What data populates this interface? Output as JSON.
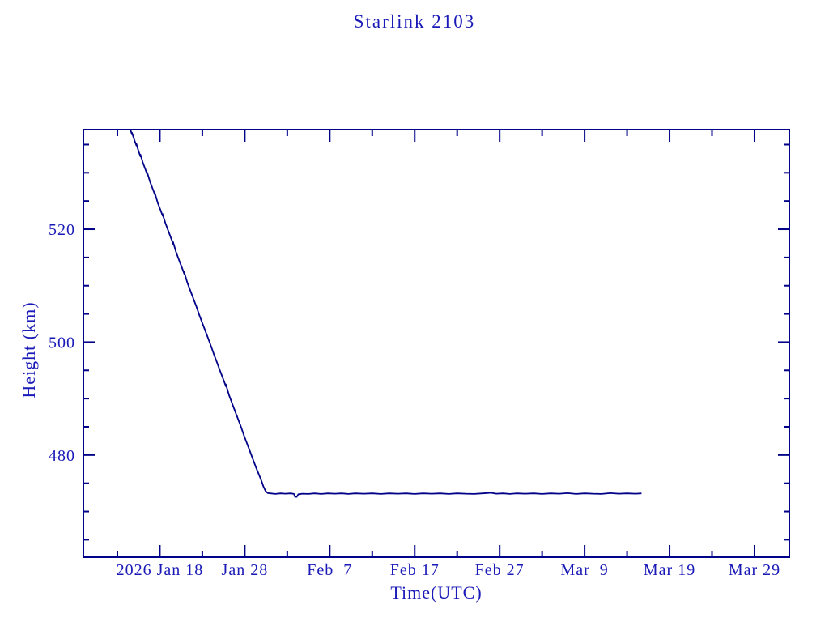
{
  "colors": {
    "background": "#ffffff",
    "line": "#000088",
    "frame": "#000088",
    "text": "#1a1ab8"
  },
  "chart_data": {
    "type": "line",
    "title": "Starlink 2103",
    "xlabel": "Time(UTC)",
    "ylabel": "Height (km)",
    "x_unit": "day_of_year_2026",
    "x_range": [
      9.0,
      92.1
    ],
    "y_range": [
      461.9,
      537.65
    ],
    "grid": "off",
    "legend": "none",
    "x_major_ticks": [
      {
        "day": 18,
        "label": "2026 Jan 18"
      },
      {
        "day": 28,
        "label": "Jan 28"
      },
      {
        "day": 38,
        "label": "Feb  7"
      },
      {
        "day": 48,
        "label": "Feb 17"
      },
      {
        "day": 58,
        "label": "Feb 27"
      },
      {
        "day": 68,
        "label": "Mar  9"
      },
      {
        "day": 78,
        "label": "Mar 19"
      },
      {
        "day": 88,
        "label": "Mar 29"
      }
    ],
    "x_minor_ticks": [
      13,
      23,
      33,
      43,
      53,
      63,
      73,
      83
    ],
    "y_major_ticks": [
      {
        "value": 480,
        "label": "480"
      },
      {
        "value": 500,
        "label": "500"
      },
      {
        "value": 520,
        "label": "520"
      }
    ],
    "y_minor_ticks": [
      465,
      470,
      475,
      485,
      490,
      495,
      505,
      510,
      515,
      525,
      530,
      535
    ],
    "series": [
      {
        "name": "height-km",
        "points": [
          [
            14.55,
            537.65
          ],
          [
            14.75,
            536.7
          ],
          [
            14.7,
            537.2
          ],
          [
            15.0,
            535.8
          ],
          [
            15.25,
            534.8
          ],
          [
            15.2,
            535.3
          ],
          [
            15.5,
            533.8
          ],
          [
            15.75,
            532.8
          ],
          [
            15.7,
            533.3
          ],
          [
            16.0,
            531.8
          ],
          [
            16.3,
            530.6
          ],
          [
            16.55,
            529.6
          ],
          [
            16.5,
            530.1
          ],
          [
            16.85,
            528.4
          ],
          [
            17.15,
            527.2
          ],
          [
            17.45,
            526.0
          ],
          [
            17.4,
            526.5
          ],
          [
            17.75,
            524.7
          ],
          [
            18.05,
            523.5
          ],
          [
            18.35,
            522.3
          ],
          [
            18.3,
            522.8
          ],
          [
            18.65,
            521.1
          ],
          [
            18.95,
            519.9
          ],
          [
            19.3,
            518.5
          ],
          [
            19.6,
            517.3
          ],
          [
            19.55,
            517.8
          ],
          [
            19.9,
            516.0
          ],
          [
            20.2,
            514.8
          ],
          [
            20.55,
            513.4
          ],
          [
            20.9,
            512.0
          ],
          [
            20.85,
            512.5
          ],
          [
            21.25,
            510.5
          ],
          [
            21.6,
            509.1
          ],
          [
            21.95,
            507.7
          ],
          [
            22.3,
            506.3
          ],
          [
            22.65,
            504.8
          ],
          [
            23.0,
            503.4
          ],
          [
            23.35,
            502.0
          ],
          [
            23.7,
            500.6
          ],
          [
            24.05,
            499.2
          ],
          [
            24.4,
            497.7
          ],
          [
            24.75,
            496.3
          ],
          [
            25.1,
            494.9
          ],
          [
            25.45,
            493.5
          ],
          [
            25.8,
            492.1
          ],
          [
            25.75,
            492.6
          ],
          [
            26.15,
            490.6
          ],
          [
            26.5,
            489.2
          ],
          [
            26.85,
            487.8
          ],
          [
            27.2,
            486.4
          ],
          [
            27.55,
            485.0
          ],
          [
            27.9,
            483.5
          ],
          [
            28.25,
            482.1
          ],
          [
            28.6,
            480.7
          ],
          [
            28.95,
            479.3
          ],
          [
            29.3,
            477.9
          ],
          [
            29.65,
            476.6
          ],
          [
            29.95,
            475.5
          ],
          [
            30.2,
            474.4
          ],
          [
            30.45,
            473.6
          ],
          [
            30.7,
            473.25
          ],
          [
            31.0,
            473.2
          ],
          [
            31.6,
            473.1
          ],
          [
            32.2,
            473.2
          ],
          [
            32.8,
            473.15
          ],
          [
            33.4,
            473.2
          ],
          [
            33.8,
            473.1
          ],
          [
            33.9,
            472.6
          ],
          [
            34.1,
            472.55
          ],
          [
            34.3,
            473.05
          ],
          [
            34.8,
            473.15
          ],
          [
            35.5,
            473.1
          ],
          [
            36.2,
            473.2
          ],
          [
            37.0,
            473.1
          ],
          [
            37.8,
            473.2
          ],
          [
            38.6,
            473.15
          ],
          [
            39.4,
            473.2
          ],
          [
            40.2,
            473.1
          ],
          [
            41.0,
            473.2
          ],
          [
            42.0,
            473.15
          ],
          [
            43.0,
            473.2
          ],
          [
            44.0,
            473.1
          ],
          [
            45.0,
            473.2
          ],
          [
            46.0,
            473.15
          ],
          [
            47.0,
            473.2
          ],
          [
            48.0,
            473.1
          ],
          [
            49.0,
            473.2
          ],
          [
            50.0,
            473.15
          ],
          [
            51.0,
            473.2
          ],
          [
            52.0,
            473.1
          ],
          [
            53.0,
            473.2
          ],
          [
            54.0,
            473.15
          ],
          [
            55.0,
            473.1
          ],
          [
            56.0,
            473.2
          ],
          [
            57.0,
            473.3
          ],
          [
            57.6,
            473.15
          ],
          [
            58.4,
            473.2
          ],
          [
            59.2,
            473.1
          ],
          [
            60.0,
            473.2
          ],
          [
            61.0,
            473.15
          ],
          [
            62.0,
            473.2
          ],
          [
            63.0,
            473.1
          ],
          [
            64.0,
            473.2
          ],
          [
            65.0,
            473.15
          ],
          [
            66.0,
            473.25
          ],
          [
            67.0,
            473.1
          ],
          [
            68.0,
            473.2
          ],
          [
            69.0,
            473.15
          ],
          [
            70.0,
            473.1
          ],
          [
            71.0,
            473.25
          ],
          [
            72.0,
            473.15
          ],
          [
            73.0,
            473.2
          ],
          [
            74.0,
            473.15
          ],
          [
            74.7,
            473.2
          ]
        ]
      }
    ]
  }
}
